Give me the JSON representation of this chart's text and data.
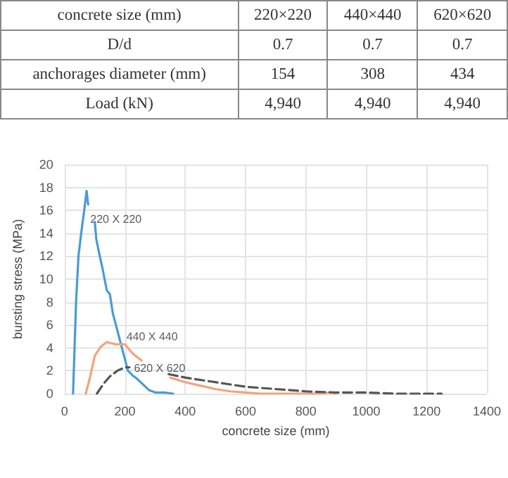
{
  "chart_data": [
    {
      "type": "other",
      "xlabel": "concrete size (mm)",
      "categories": [
        "220×220",
        "440×440",
        "620×620"
      ],
      "series": [
        {
          "name": "D/d",
          "values": [
            0.7,
            0.7,
            0.7
          ],
          "value_labels": [
            "0.7",
            "0.7",
            "0.7"
          ]
        },
        {
          "name": "anchorages diameter (mm)",
          "values": [
            154,
            308,
            434
          ],
          "value_labels": [
            "154",
            "308",
            "434"
          ]
        },
        {
          "name": "Load (kN)",
          "values": [
            4940,
            4940,
            4940
          ],
          "value_labels": [
            "4,940",
            "4,940",
            "4,940"
          ]
        }
      ]
    },
    {
      "type": "line",
      "xlabel": "concrete size (mm)",
      "ylabel": "bursting stress (MPa)",
      "xlim": [
        0,
        1400
      ],
      "ylim": [
        0,
        20
      ],
      "xticks": [
        0,
        200,
        400,
        600,
        800,
        1000,
        1200,
        1400
      ],
      "yticks": [
        0,
        2,
        4,
        6,
        8,
        10,
        12,
        14,
        16,
        18,
        20
      ],
      "grid": true,
      "legend": false,
      "marker": "none",
      "series": [
        {
          "color": "#4a9bd4",
          "line_style": "solid",
          "x": [
            28,
            38,
            46,
            55,
            65,
            73,
            78,
            null,
            100,
            105,
            115,
            125,
            140,
            150,
            160,
            170,
            180,
            190,
            200,
            210,
            225,
            240,
            260,
            280,
            300,
            330,
            360
          ],
          "values": [
            0,
            8,
            12,
            14,
            16,
            17.7,
            16.5,
            null,
            15,
            13.5,
            12.2,
            11,
            9,
            8.7,
            7,
            6,
            5,
            4,
            3,
            2,
            1.6,
            1.3,
            0.8,
            0.3,
            0.1,
            0.1,
            0
          ]
        },
        {
          "color": "#f4a27a",
          "line_style": "solid",
          "x": [
            70,
            85,
            100,
            120,
            140,
            155,
            170,
            185,
            200,
            226,
            240,
            255,
            null,
            350,
            400,
            450,
            500,
            550,
            600,
            650,
            750,
            850,
            880,
            900
          ],
          "values": [
            0,
            1.5,
            3.3,
            4.1,
            4.5,
            4.4,
            4.3,
            4.3,
            4.3,
            3.5,
            3.2,
            2.9,
            null,
            1.4,
            1.0,
            0.7,
            0.4,
            0.2,
            0.1,
            0,
            0,
            0,
            0.1,
            0
          ],
          "type": "line"
        },
        {
          "color": "#555555",
          "line_style": "dashed",
          "x": [
            107,
            130,
            150,
            175,
            200,
            215,
            null,
            345,
            400,
            500,
            600,
            700,
            800,
            900,
            1000,
            1100,
            1250
          ],
          "values": [
            0,
            0.9,
            1.5,
            2.0,
            2.3,
            2.3,
            null,
            1.7,
            1.4,
            1.0,
            0.6,
            0.4,
            0.2,
            0.1,
            0.1,
            0,
            0
          ]
        }
      ],
      "annotations": [
        {
          "text": "220 X 220",
          "x": 85,
          "y": 15.2
        },
        {
          "text": "440 X 440",
          "x": 205,
          "y": 5.0
        },
        {
          "text": "620 X 620",
          "x": 230,
          "y": 2.2
        }
      ]
    }
  ]
}
